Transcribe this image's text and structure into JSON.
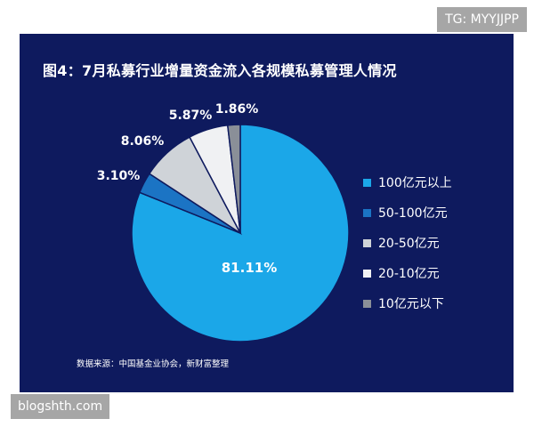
{
  "watermarks": {
    "top": "TG: MYYJJPP",
    "bottom": "blogshth.com"
  },
  "chart_data": {
    "type": "pie",
    "title": "图4：7月私募行业增量资金流入各规模私募管理人情况",
    "source": "数据来源：中国基金业协会，新财富整理",
    "legend_position": "right",
    "slices": [
      {
        "name": "100亿元以上",
        "value": 81.11,
        "label": "81.11%",
        "color": "#1ba7e8"
      },
      {
        "name": "50-100亿元",
        "value": 3.1,
        "label": "3.10%",
        "color": "#1b74c4"
      },
      {
        "name": "20-50亿元",
        "value": 8.06,
        "label": "8.06%",
        "color": "#cfd3d8"
      },
      {
        "name": "20-10亿元",
        "value": 5.87,
        "label": "5.87%",
        "color": "#f0f1f3"
      },
      {
        "name": "10亿元以下",
        "value": 1.86,
        "label": "1.86%",
        "color": "#8a8f98"
      }
    ]
  }
}
